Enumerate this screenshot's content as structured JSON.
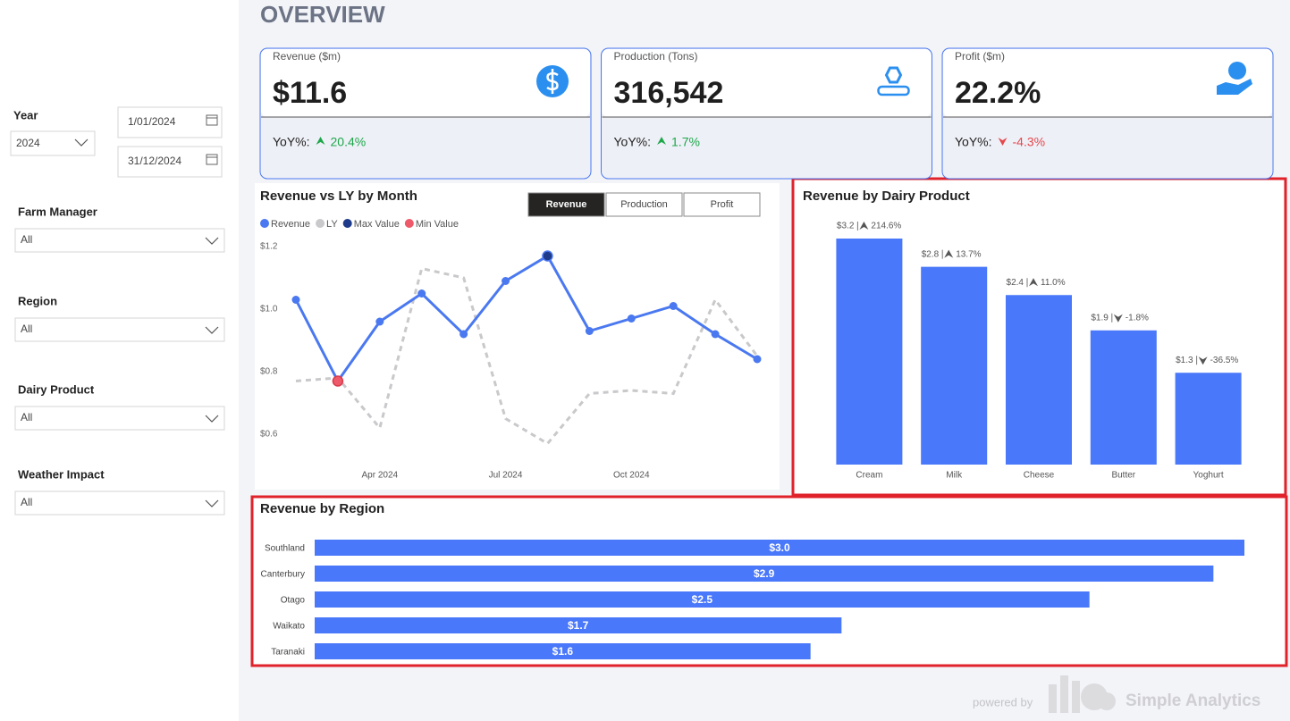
{
  "header": {
    "title": "OVERVIEW"
  },
  "filters": {
    "year": {
      "label": "Year",
      "value": "2024",
      "start_date": "1/01/2024",
      "end_date": "31/12/2024"
    },
    "slicers": [
      {
        "label": "Farm Manager",
        "value": "All"
      },
      {
        "label": "Region",
        "value": "All"
      },
      {
        "label": "Dairy Product",
        "value": "All"
      },
      {
        "label": "Weather Impact",
        "value": "All"
      }
    ]
  },
  "kpis": [
    {
      "label": "Revenue ($m)",
      "value": "$11.6",
      "yoy_label": "YoY%:",
      "yoy": "20.4%"
    },
    {
      "label": "Production (Tons)",
      "value": "316,542",
      "yoy_label": "YoY%:",
      "yoy": "1.7%"
    },
    {
      "label": "Profit ($m)",
      "value": "22.2%",
      "yoy_label": "YoY%:",
      "yoy": "-4.3%"
    }
  ],
  "chart_data": [
    {
      "type": "line",
      "title": "Revenue vs LY by Month",
      "tabs": [
        "Revenue",
        "Production",
        "Profit"
      ],
      "active_tab": "Revenue",
      "categories": [
        null,
        null,
        "Apr 2024",
        null,
        null,
        "Jul 2024",
        null,
        null,
        "Oct 2024",
        null,
        null,
        null
      ],
      "series": [
        {
          "name": "Revenue",
          "color": "#4a78f0",
          "values": [
            1.03,
            0.77,
            0.96,
            1.05,
            0.92,
            1.09,
            1.17,
            0.93,
            0.97,
            1.01,
            0.92,
            0.84
          ]
        },
        {
          "name": "LY",
          "color": "#c9c9cc",
          "dashed": true,
          "values": [
            0.77,
            0.78,
            0.62,
            1.13,
            1.1,
            0.65,
            0.57,
            0.73,
            0.74,
            0.73,
            1.03,
            0.85
          ]
        }
      ],
      "markers": [
        {
          "name": "Max Value",
          "color": "#1e3a8a"
        },
        {
          "name": "Min Value",
          "color": "#ee5a6a"
        }
      ],
      "ylim": [
        0.53,
        1.23
      ],
      "yticks": [
        {
          "value": 0.6,
          "label": "$0.6"
        },
        {
          "value": 0.8,
          "label": "$0.8"
        },
        {
          "value": 1.0,
          "label": "$1.0"
        },
        {
          "value": 1.2,
          "label": "$1.2"
        }
      ]
    },
    {
      "type": "bar",
      "title": "Revenue by Dairy Product",
      "categories": [
        "Cream",
        "Milk",
        "Cheese",
        "Butter",
        "Yoghurt"
      ],
      "values": [
        3.2,
        2.8,
        2.4,
        1.9,
        1.3
      ],
      "value_labels": [
        "$3.2",
        "$2.8",
        "$2.4",
        "$1.9",
        "$1.3"
      ],
      "yoy": [
        214.6,
        13.7,
        11.0,
        -1.8,
        -36.5
      ],
      "yoy_labels": [
        "214.6%",
        "13.7%",
        "11.0%",
        "-1.8%",
        "-36.5%"
      ],
      "color": "#4a78fa"
    },
    {
      "type": "hbar",
      "title": "Revenue by Region",
      "categories": [
        "Southland",
        "Canterbury",
        "Otago",
        "Waikato",
        "Taranaki"
      ],
      "values": [
        3.0,
        2.9,
        2.5,
        1.7,
        1.6
      ],
      "value_labels": [
        "$3.0",
        "$2.9",
        "$2.5",
        "$1.7",
        "$1.6"
      ],
      "color": "#4a78fa"
    }
  ],
  "footer": {
    "powered_by": "powered by",
    "brand": "Simple Analytics"
  }
}
